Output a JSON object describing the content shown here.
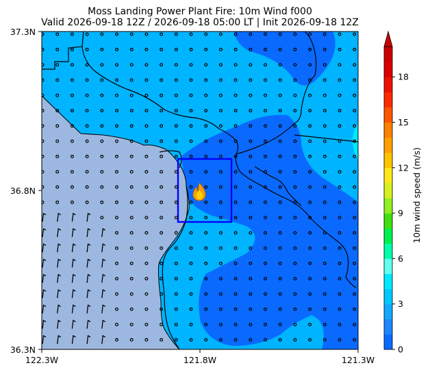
{
  "title_line1": "Moss Landing Power Plant Fire: 10m Wind f000",
  "title_line2": "Valid 2026-09-18 12Z / 2026-09-18 05:00 LT | Init 2026-09-18 12Z",
  "map": {
    "lat_ticks": [
      "37.3N",
      "36.8N",
      "36.3N"
    ],
    "lon_ticks": [
      "122.3W",
      "121.8W",
      "121.3W"
    ],
    "extent": {
      "lon": [
        -122.3,
        -121.3
      ],
      "lat": [
        36.3,
        37.3
      ]
    },
    "ocean_color": "#9db8e0",
    "coastline_color": "#000000",
    "box_color": "#0000ff",
    "fire_icon": "fire-icon",
    "fire_location": {
      "lon": -121.8,
      "lat": 36.8
    }
  },
  "colorbar": {
    "label": "10m wind speed (m/s)",
    "ticks": [
      "0",
      "3",
      "6",
      "9",
      "12",
      "15",
      "18"
    ],
    "range": [
      0,
      20
    ],
    "extend": "max",
    "colors": [
      "#0a6aff",
      "#1c86ff",
      "#12a8ff",
      "#00c8ff",
      "#00e8ff",
      "#60ffee",
      "#00ffaa",
      "#00f050",
      "#40e010",
      "#90f020",
      "#d8f020",
      "#ffe81a",
      "#ffc400",
      "#ffa000",
      "#ff7f00",
      "#ff5500",
      "#ff2a00",
      "#ee1000",
      "#dd0000",
      "#cc0000"
    ]
  }
}
